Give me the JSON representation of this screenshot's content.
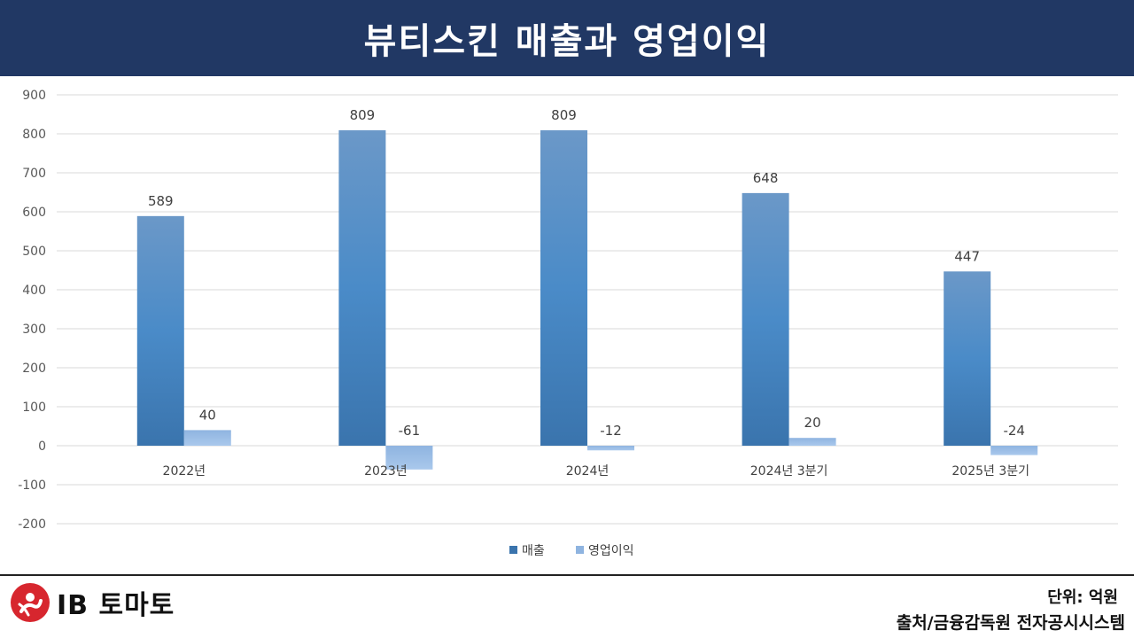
{
  "header": {
    "title": "뷰티스킨 매출과 영업이익"
  },
  "footer": {
    "logo_text": "IB 토마토",
    "unit": "단위: 억원",
    "source": "출처/금융감독원 전자공시시스템"
  },
  "colors": {
    "header_bg": "#213864",
    "revenue": "#4a86c4",
    "operating_profit": "#9dc0e8"
  },
  "chart_data": {
    "type": "bar",
    "categories": [
      "2022년",
      "2023년",
      "2024년",
      "2024년 3분기",
      "2025년 3분기"
    ],
    "series": [
      {
        "name": "매출",
        "values": [
          589,
          809,
          809,
          648,
          447
        ]
      },
      {
        "name": "영업이익",
        "values": [
          40,
          -61,
          -12,
          20,
          -24
        ]
      }
    ],
    "ylim": [
      -200,
      900
    ],
    "yticks": [
      -200,
      -100,
      0,
      100,
      200,
      300,
      400,
      500,
      600,
      700,
      800,
      900
    ],
    "grid": true,
    "legend": "bottom"
  }
}
